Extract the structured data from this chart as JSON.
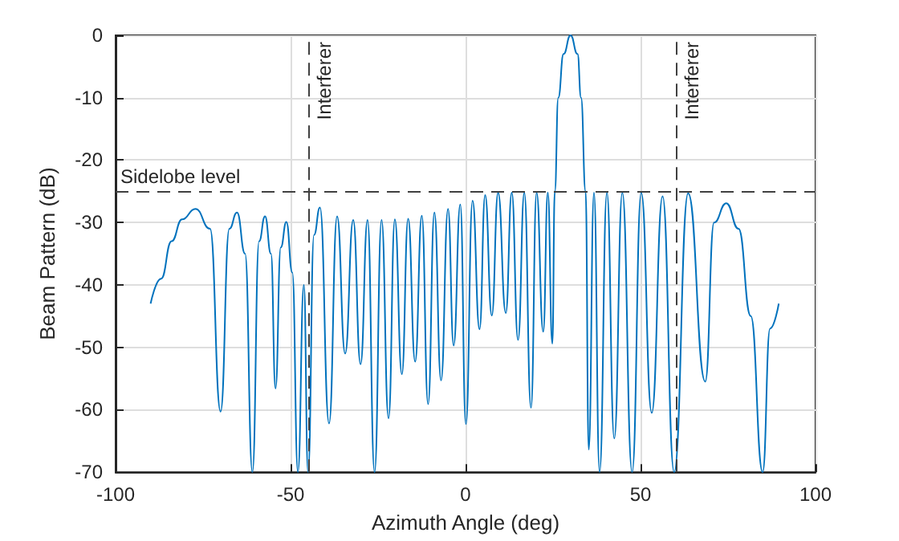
{
  "chart_data": {
    "type": "line",
    "xlabel": "Azimuth Angle (deg)",
    "ylabel": "Beam Pattern (dB)",
    "xlim": [
      -100,
      100
    ],
    "xticks": [
      -100,
      -50,
      0,
      50,
      100
    ],
    "ylim": [
      -70,
      0
    ],
    "yticks": [
      -70,
      -60,
      -50,
      -40,
      -30,
      -20,
      -10,
      0
    ],
    "grid": true,
    "series": [
      {
        "color": "#0072bd",
        "x": [
          -90,
          -87,
          -84,
          -81,
          -77.2,
          -73,
          -70,
          -67.5,
          -65.3,
          -63,
          -60.9,
          -59,
          -57.3,
          -55.6,
          -54.3,
          -52.8,
          -51.2,
          -49.5,
          -47.9,
          -46.2,
          -45,
          -43.3,
          -41.6,
          -39,
          -36.7,
          -34.4,
          -32.1,
          -30,
          -28,
          -26,
          -24,
          -22,
          -20.2,
          -18.2,
          -16.4,
          -14.4,
          -12.5,
          -10.7,
          -8.9,
          -7,
          -5,
          -3.4,
          -1.5,
          0.1,
          2,
          4,
          5.6,
          7.5,
          9.3,
          11.5,
          13.2,
          15,
          16.8,
          18.7,
          20.3,
          22.2,
          23.5,
          24.8,
          25.5,
          26.5,
          28,
          30,
          32,
          33,
          34.3,
          35.2,
          36.7,
          38.3,
          40.4,
          42.5,
          44.8,
          47.6,
          50.2,
          53.2,
          56.3,
          59.6,
          63.6,
          68.5,
          71,
          74.5,
          78,
          81.5,
          84.9,
          87,
          89.5
        ],
        "values": [
          -43,
          -39,
          -33,
          -29.5,
          -27.8,
          -31,
          -60.3,
          -31,
          -28.4,
          -35,
          -70,
          -33,
          -29,
          -35,
          -56.6,
          -34,
          -29.9,
          -38,
          -70,
          -40,
          -70,
          -32,
          -27.6,
          -62.2,
          -29,
          -51,
          -29.6,
          -52.7,
          -29.6,
          -70,
          -29.6,
          -61.4,
          -29.5,
          -54.3,
          -29.4,
          -52.3,
          -28.9,
          -59.1,
          -28.4,
          -55.3,
          -27.8,
          -49.7,
          -27.1,
          -62.3,
          -26.5,
          -47.1,
          -25.6,
          -44.9,
          -25.2,
          -44.5,
          -25.2,
          -48.8,
          -25.2,
          -59.7,
          -25.2,
          -47.5,
          -25.2,
          -49.4,
          -25,
          -10,
          -3,
          0,
          -3,
          -10,
          -25,
          -66.4,
          -25.2,
          -70,
          -25.2,
          -64.6,
          -25.2,
          -70,
          -25.2,
          -60.5,
          -25.8,
          -70,
          -25.3,
          -55.5,
          -30,
          -26.9,
          -31,
          -45,
          -70,
          -47,
          -43
        ]
      }
    ],
    "ref_lines": [
      {
        "axis": "x",
        "value": -45,
        "label": "Interferer",
        "color": "#404040",
        "line_style": "dashed"
      },
      {
        "axis": "x",
        "value": 60,
        "label": "Interferer",
        "color": "#404040",
        "line_style": "dashed"
      },
      {
        "axis": "y",
        "value": -25,
        "label": "Sidelobe level",
        "color": "#404040",
        "line_style": "dashed"
      }
    ]
  }
}
